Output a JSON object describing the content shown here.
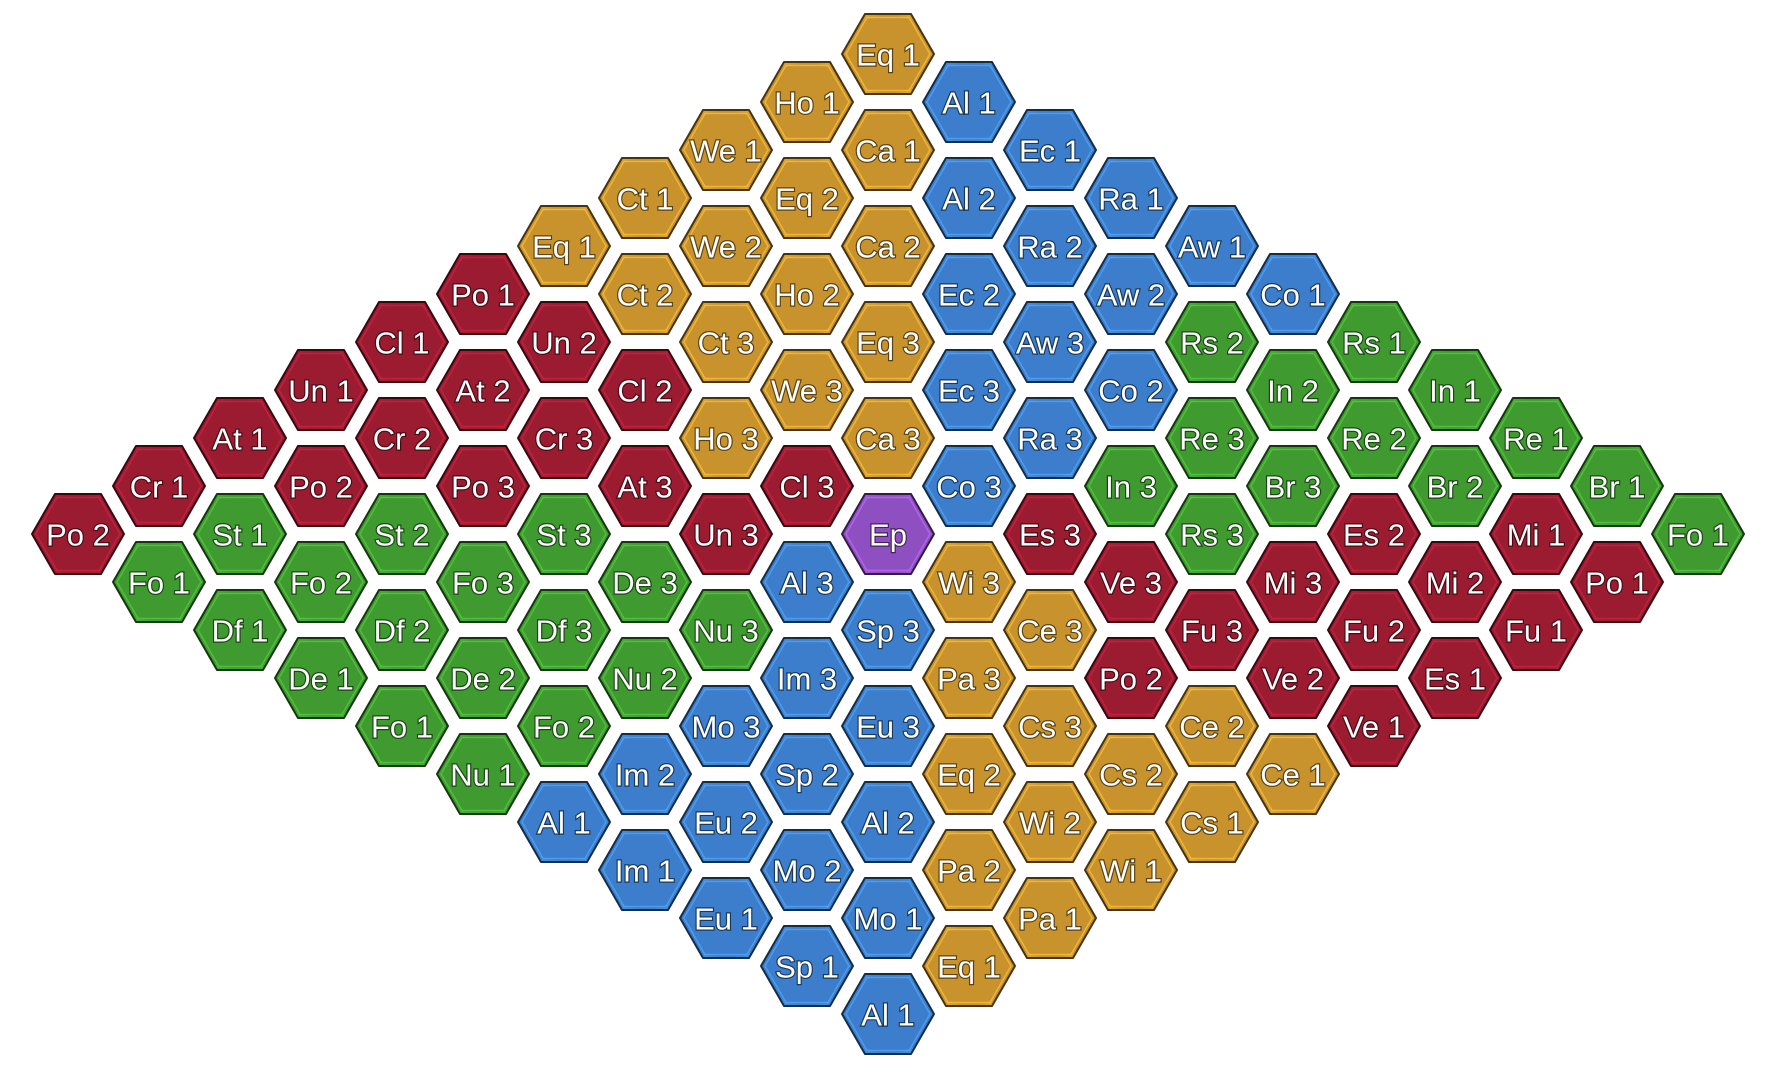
{
  "colors": {
    "red": "#9b1b30",
    "green": "#3f9a2f",
    "blue": "#3c7ecb",
    "gold": "#c8922c",
    "purple": "#8e4fc1"
  },
  "board": {
    "rows": [
      [
        {
          "label": "Eq 1",
          "color": "gold"
        }
      ],
      [
        {
          "label": "Ho 1",
          "color": "gold"
        },
        {
          "label": "Al 1",
          "color": "blue"
        }
      ],
      [
        {
          "label": "We 1",
          "color": "gold"
        },
        {
          "label": "Ca 1",
          "color": "gold"
        },
        {
          "label": "Ec 1",
          "color": "blue"
        }
      ],
      [
        {
          "label": "Ct 1",
          "color": "gold"
        },
        {
          "label": "Eq 2",
          "color": "gold"
        },
        {
          "label": "Al 2",
          "color": "blue"
        },
        {
          "label": "Ra 1",
          "color": "blue"
        }
      ],
      [
        {
          "label": "Eq 1",
          "color": "gold"
        },
        {
          "label": "We 2",
          "color": "gold"
        },
        {
          "label": "Ca 2",
          "color": "gold"
        },
        {
          "label": "Ra 2",
          "color": "blue"
        },
        {
          "label": "Aw 1",
          "color": "blue"
        }
      ],
      [
        {
          "label": "Po 1",
          "color": "red"
        },
        {
          "label": "Ct 2",
          "color": "gold"
        },
        {
          "label": "Ho 2",
          "color": "gold"
        },
        {
          "label": "Ec 2",
          "color": "blue"
        },
        {
          "label": "Aw 2",
          "color": "blue"
        },
        {
          "label": "Co 1",
          "color": "blue"
        }
      ],
      [
        {
          "label": "Cl 1",
          "color": "red"
        },
        {
          "label": "Un 2",
          "color": "red"
        },
        {
          "label": "Ct 3",
          "color": "gold"
        },
        {
          "label": "Eq 3",
          "color": "gold"
        },
        {
          "label": "Aw 3",
          "color": "blue"
        },
        {
          "label": "Rs 2",
          "color": "green"
        },
        {
          "label": "Rs 1",
          "color": "green"
        }
      ],
      [
        {
          "label": "Un 1",
          "color": "red"
        },
        {
          "label": "At 2",
          "color": "red"
        },
        {
          "label": "Cl 2",
          "color": "red"
        },
        {
          "label": "We 3",
          "color": "gold"
        },
        {
          "label": "Ec 3",
          "color": "blue"
        },
        {
          "label": "Co 2",
          "color": "blue"
        },
        {
          "label": "In 2",
          "color": "green"
        },
        {
          "label": "In 1",
          "color": "green"
        }
      ],
      [
        {
          "label": "At 1",
          "color": "red"
        },
        {
          "label": "Cr 2",
          "color": "red"
        },
        {
          "label": "Cr 3",
          "color": "red"
        },
        {
          "label": "Ho 3",
          "color": "gold"
        },
        {
          "label": "Ca 3",
          "color": "gold"
        },
        {
          "label": "Ra 3",
          "color": "blue"
        },
        {
          "label": "Re 3",
          "color": "green"
        },
        {
          "label": "Re 2",
          "color": "green"
        },
        {
          "label": "Re 1",
          "color": "green"
        }
      ],
      [
        {
          "label": "Cr 1",
          "color": "red"
        },
        {
          "label": "Po 2",
          "color": "red"
        },
        {
          "label": "Po 3",
          "color": "red"
        },
        {
          "label": "At 3",
          "color": "red"
        },
        {
          "label": "Cl 3",
          "color": "red"
        },
        {
          "label": "Co 3",
          "color": "blue"
        },
        {
          "label": "In 3",
          "color": "green"
        },
        {
          "label": "Br 3",
          "color": "green"
        },
        {
          "label": "Br 2",
          "color": "green"
        },
        {
          "label": "Br 1",
          "color": "green"
        }
      ],
      [
        {
          "label": "Po 2",
          "color": "red"
        },
        {
          "label": "St 1",
          "color": "green"
        },
        {
          "label": "St 2",
          "color": "green"
        },
        {
          "label": "St 3",
          "color": "green"
        },
        {
          "label": "Un 3",
          "color": "red"
        },
        {
          "label": "Ep",
          "color": "purple"
        },
        {
          "label": "Es 3",
          "color": "red"
        },
        {
          "label": "Rs 3",
          "color": "green"
        },
        {
          "label": "Es 2",
          "color": "red"
        },
        {
          "label": "Mi 1",
          "color": "red"
        },
        {
          "label": "Fo 1",
          "color": "green"
        }
      ],
      [
        {
          "label": "Fo 1",
          "color": "green"
        },
        {
          "label": "Fo 2",
          "color": "green"
        },
        {
          "label": "Fo 3",
          "color": "green"
        },
        {
          "label": "De 3",
          "color": "green"
        },
        {
          "label": "Al 3",
          "color": "blue"
        },
        {
          "label": "Wi 3",
          "color": "gold"
        },
        {
          "label": "Ve 3",
          "color": "red"
        },
        {
          "label": "Mi 3",
          "color": "red"
        },
        {
          "label": "Mi 2",
          "color": "red"
        },
        {
          "label": "Po 1",
          "color": "red"
        }
      ],
      [
        {
          "label": "Df 1",
          "color": "green"
        },
        {
          "label": "Df 2",
          "color": "green"
        },
        {
          "label": "Df 3",
          "color": "green"
        },
        {
          "label": "Nu 3",
          "color": "green"
        },
        {
          "label": "Sp 3",
          "color": "blue"
        },
        {
          "label": "Ce 3",
          "color": "gold"
        },
        {
          "label": "Fu 3",
          "color": "red"
        },
        {
          "label": "Fu 2",
          "color": "red"
        },
        {
          "label": "Fu 1",
          "color": "red"
        }
      ],
      [
        {
          "label": "De 1",
          "color": "green"
        },
        {
          "label": "De 2",
          "color": "green"
        },
        {
          "label": "Nu 2",
          "color": "green"
        },
        {
          "label": "Im 3",
          "color": "blue"
        },
        {
          "label": "Pa 3",
          "color": "gold"
        },
        {
          "label": "Po 2",
          "color": "red"
        },
        {
          "label": "Ve 2",
          "color": "red"
        },
        {
          "label": "Es 1",
          "color": "red"
        }
      ],
      [
        {
          "label": "Fo 1",
          "color": "green"
        },
        {
          "label": "Fo 2",
          "color": "green"
        },
        {
          "label": "Mo 3",
          "color": "blue"
        },
        {
          "label": "Eu 3",
          "color": "blue"
        },
        {
          "label": "Cs 3",
          "color": "gold"
        },
        {
          "label": "Ce 2",
          "color": "gold"
        },
        {
          "label": "Ve 1",
          "color": "red"
        }
      ],
      [
        {
          "label": "Nu 1",
          "color": "green"
        },
        {
          "label": "Im 2",
          "color": "blue"
        },
        {
          "label": "Sp 2",
          "color": "blue"
        },
        {
          "label": "Eq 2",
          "color": "gold"
        },
        {
          "label": "Cs 2",
          "color": "gold"
        },
        {
          "label": "Ce 1",
          "color": "gold"
        }
      ],
      [
        {
          "label": "Al 1",
          "color": "blue"
        },
        {
          "label": "Eu 2",
          "color": "blue"
        },
        {
          "label": "Al 2",
          "color": "blue"
        },
        {
          "label": "Wi 2",
          "color": "gold"
        },
        {
          "label": "Cs 1",
          "color": "gold"
        }
      ],
      [
        {
          "label": "Im 1",
          "color": "blue"
        },
        {
          "label": "Mo 2",
          "color": "blue"
        },
        {
          "label": "Pa 2",
          "color": "gold"
        },
        {
          "label": "Wi 1",
          "color": "gold"
        }
      ],
      [
        {
          "label": "Eu 1",
          "color": "blue"
        },
        {
          "label": "Mo 1",
          "color": "blue"
        },
        {
          "label": "Pa 1",
          "color": "gold"
        }
      ],
      [
        {
          "label": "Sp 1",
          "color": "blue"
        },
        {
          "label": "Eq 1",
          "color": "gold"
        }
      ],
      [
        {
          "label": "Al 1",
          "color": "blue"
        }
      ]
    ]
  }
}
